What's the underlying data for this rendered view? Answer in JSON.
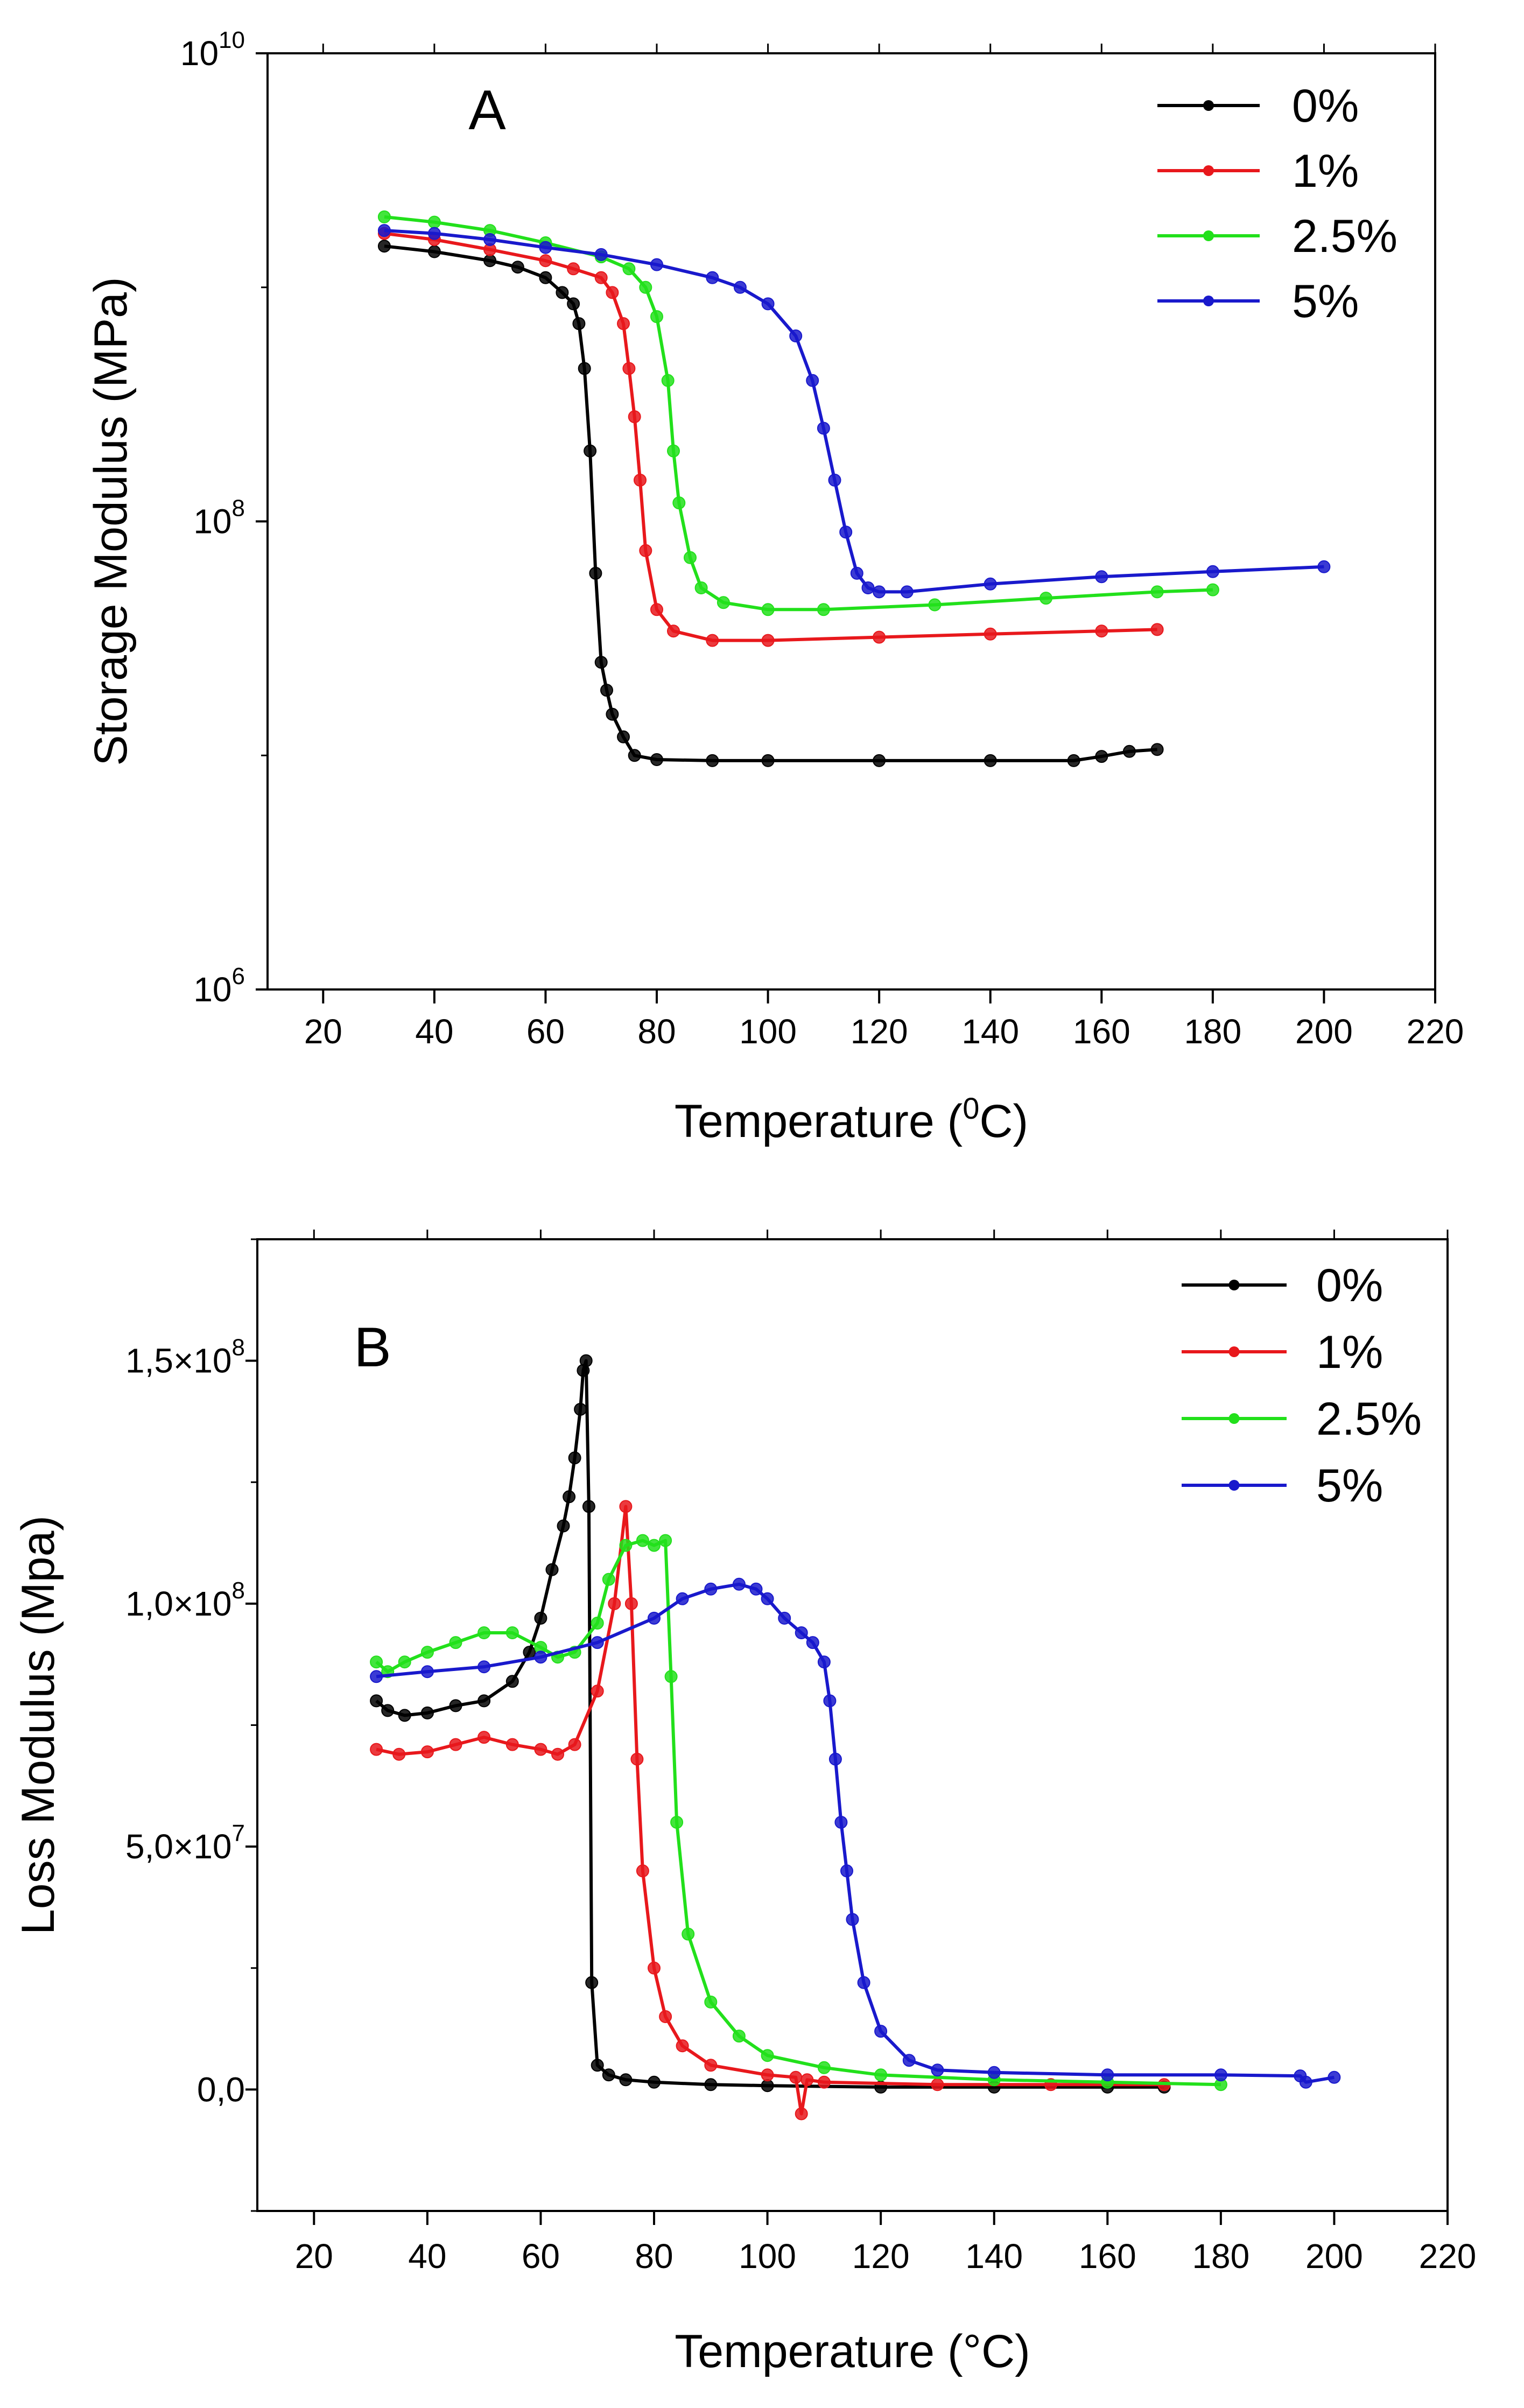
{
  "chart_data": [
    {
      "type": "line",
      "panel_label": "A",
      "xlabel": "Temperature (0C)",
      "xlabel_parts": [
        "Temperature (",
        "0",
        "C)"
      ],
      "ylabel": "Storage Modulus (MPa)",
      "xlim": [
        10,
        220
      ],
      "ylim": [
        1000000,
        10000000000
      ],
      "yscale": "log",
      "x_ticks": [
        20,
        40,
        60,
        80,
        100,
        120,
        140,
        160,
        180,
        200,
        220
      ],
      "x_tick_labels": [
        "20",
        "40",
        "60",
        "80",
        "100",
        "120",
        "140",
        "160",
        "180",
        "200",
        "220"
      ],
      "y_ticks": [
        1000000,
        100000000,
        10000000000
      ],
      "y_tick_labels": [
        {
          "base": "10",
          "exp": "6"
        },
        {
          "base": "10",
          "exp": "8"
        },
        {
          "base": "10",
          "exp": "10"
        }
      ],
      "grid": false,
      "legend_position": "top-right",
      "series": [
        {
          "name": "0%",
          "color": "#000000",
          "x": [
            31,
            40,
            50,
            55,
            60,
            63,
            65,
            66,
            67,
            68,
            69,
            70,
            71,
            72,
            74,
            76,
            80,
            90,
            100,
            120,
            140,
            155,
            160,
            165,
            170
          ],
          "y": [
            1500000000,
            1420000000,
            1300000000,
            1220000000,
            1100000000,
            950000000,
            850000000,
            700000000,
            450000000,
            200000000,
            60000000,
            25000000,
            19000000,
            15000000,
            12000000,
            10000000,
            9600000,
            9500000,
            9500000,
            9500000,
            9500000,
            9500000,
            9900000,
            10400000,
            10600000
          ]
        },
        {
          "name": "1%",
          "color": "#e8181c",
          "x": [
            31,
            40,
            50,
            60,
            65,
            70,
            72,
            74,
            75,
            76,
            77,
            78,
            80,
            83,
            90,
            100,
            120,
            140,
            160,
            170
          ],
          "y": [
            1700000000,
            1600000000,
            1450000000,
            1300000000,
            1200000000,
            1100000000,
            950000000,
            700000000,
            450000000,
            280000000,
            150000000,
            75000000,
            42000000,
            34000000,
            31000000,
            31000000,
            32000000,
            33000000,
            34000000,
            34500000
          ]
        },
        {
          "name": "2.5%",
          "color": "#22e01b",
          "x": [
            31,
            40,
            50,
            60,
            70,
            75,
            78,
            80,
            82,
            83,
            84,
            86,
            88,
            92,
            100,
            110,
            130,
            150,
            170,
            180
          ],
          "y": [
            2000000000,
            1900000000,
            1750000000,
            1550000000,
            1350000000,
            1200000000,
            1000000000,
            750000000,
            400000000,
            200000000,
            120000000,
            70000000,
            52000000,
            45000000,
            42000000,
            42000000,
            44000000,
            47000000,
            50000000,
            51000000
          ]
        },
        {
          "name": "5%",
          "color": "#1919cc",
          "x": [
            31,
            40,
            50,
            60,
            70,
            80,
            90,
            95,
            100,
            105,
            108,
            110,
            112,
            114,
            116,
            118,
            120,
            125,
            140,
            160,
            180,
            200
          ],
          "y": [
            1750000000,
            1700000000,
            1600000000,
            1480000000,
            1380000000,
            1250000000,
            1100000000,
            1000000000,
            850000000,
            620000000,
            400000000,
            250000000,
            150000000,
            90000000,
            60000000,
            52000000,
            50000000,
            50000000,
            54000000,
            58000000,
            61000000,
            64000000
          ]
        }
      ]
    },
    {
      "type": "line",
      "panel_label": "B",
      "xlabel": "Temperature (°C)",
      "ylabel": "Loss Modulus (Mpa)",
      "xlim": [
        10,
        220
      ],
      "ylim": [
        -25000000,
        175000000
      ],
      "yscale": "linear",
      "x_ticks": [
        20,
        40,
        60,
        80,
        100,
        120,
        140,
        160,
        180,
        200,
        220
      ],
      "x_tick_labels": [
        "20",
        "40",
        "60",
        "80",
        "100",
        "120",
        "140",
        "160",
        "180",
        "200",
        "220"
      ],
      "y_ticks": [
        0,
        50000000,
        100000000,
        150000000
      ],
      "y_tick_labels": [
        {
          "base": "0,0",
          "exp": ""
        },
        {
          "base": "5,0×10",
          "exp": "7"
        },
        {
          "base": "1,0×10",
          "exp": "8"
        },
        {
          "base": "1,5×10",
          "exp": "8"
        }
      ],
      "grid": false,
      "legend_position": "top-right",
      "series": [
        {
          "name": "0%",
          "color": "#000000",
          "x": [
            31,
            33,
            36,
            40,
            45,
            50,
            55,
            58,
            60,
            62,
            64,
            65,
            66,
            67,
            67.5,
            68,
            68.5,
            69,
            70,
            72,
            75,
            80,
            90,
            100,
            120,
            140,
            160,
            170
          ],
          "y": [
            80000000,
            78000000,
            77000000,
            77500000,
            79000000,
            80000000,
            84000000,
            90000000,
            97000000,
            107000000,
            116000000,
            122000000,
            130000000,
            140000000,
            148000000,
            150000000,
            120000000,
            22000000,
            5000000,
            3000000,
            2000000,
            1500000,
            1000000,
            800000,
            500000,
            500000,
            500000,
            500000
          ]
        },
        {
          "name": "1%",
          "color": "#e8181c",
          "x": [
            31,
            35,
            40,
            45,
            50,
            55,
            60,
            63,
            66,
            70,
            73,
            75,
            76,
            77,
            78,
            80,
            82,
            85,
            90,
            100,
            105,
            106,
            107,
            110,
            130,
            150,
            170
          ],
          "y": [
            70000000,
            69000000,
            69500000,
            71000000,
            72500000,
            71000000,
            70000000,
            69000000,
            71000000,
            82000000,
            100000000,
            120000000,
            100000000,
            68000000,
            45000000,
            25000000,
            15000000,
            9000000,
            5000000,
            3000000,
            2500000,
            -5000000,
            2000000,
            1500000,
            1000000,
            1000000,
            1000000
          ]
        },
        {
          "name": "2.5%",
          "color": "#22e01b",
          "x": [
            31,
            33,
            36,
            40,
            45,
            50,
            55,
            60,
            63,
            66,
            70,
            72,
            75,
            78,
            80,
            82,
            83,
            84,
            86,
            90,
            95,
            100,
            110,
            120,
            140,
            160,
            180
          ],
          "y": [
            88000000,
            86000000,
            88000000,
            90000000,
            92000000,
            94000000,
            94000000,
            91000000,
            89000000,
            90000000,
            96000000,
            105000000,
            112000000,
            113000000,
            112000000,
            113000000,
            85000000,
            55000000,
            32000000,
            18000000,
            11000000,
            7000000,
            4500000,
            3000000,
            2000000,
            1500000,
            1000000
          ]
        },
        {
          "name": "5%",
          "color": "#1919cc",
          "x": [
            31,
            40,
            50,
            60,
            70,
            80,
            85,
            90,
            95,
            98,
            100,
            103,
            106,
            108,
            110,
            111,
            112,
            113,
            114,
            115,
            117,
            120,
            125,
            130,
            140,
            160,
            180,
            194,
            195,
            200
          ],
          "y": [
            85000000,
            86000000,
            87000000,
            89000000,
            92000000,
            97000000,
            101000000,
            103000000,
            104000000,
            103000000,
            101000000,
            97000000,
            94000000,
            92000000,
            88000000,
            80000000,
            68000000,
            55000000,
            45000000,
            35000000,
            22000000,
            12000000,
            6000000,
            4000000,
            3500000,
            3000000,
            3000000,
            2800000,
            1500000,
            2500000
          ]
        }
      ]
    }
  ]
}
